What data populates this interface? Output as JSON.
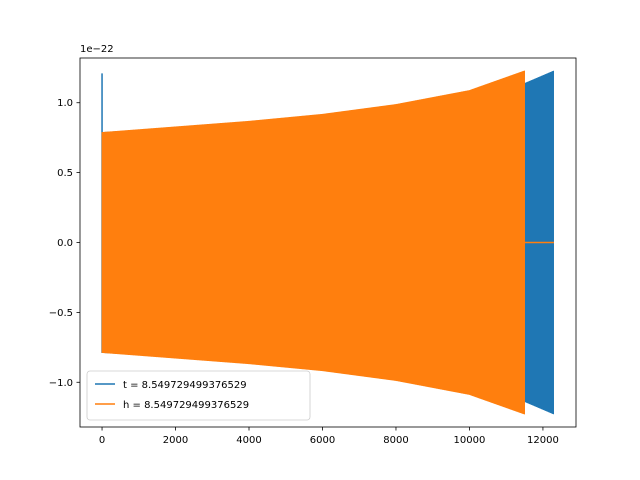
{
  "chart_data": {
    "type": "line",
    "title": "",
    "xlabel": "",
    "ylabel": "",
    "y_offset_label": "1e−22",
    "xlim": [
      -600,
      12900
    ],
    "ylim": [
      -1.32,
      1.32
    ],
    "x_ticks": [
      0,
      2000,
      4000,
      6000,
      8000,
      10000,
      12000
    ],
    "x_tick_labels": [
      "0",
      "2000",
      "4000",
      "6000",
      "8000",
      "10000",
      "12000"
    ],
    "y_ticks": [
      -1.0,
      -0.5,
      0.0,
      0.5,
      1.0
    ],
    "y_tick_labels": [
      "−1.0",
      "−0.5",
      "0.0",
      "0.5",
      "1.0"
    ],
    "grid": false,
    "legend_position": "lower-left",
    "series": [
      {
        "name": "t = 8.549729499376529",
        "color": "#1f77b4",
        "envelope": {
          "x": [
            0,
            2000,
            4000,
            6000,
            8000,
            10000,
            11500,
            12300
          ],
          "upper": [
            0.79,
            0.82,
            0.86,
            0.9,
            0.96,
            1.04,
            1.14,
            1.23
          ],
          "lower": [
            -0.79,
            -0.82,
            -0.86,
            -0.9,
            -0.96,
            -1.04,
            -1.14,
            -1.23
          ]
        },
        "spike": {
          "x": 0,
          "top": 1.21,
          "bottom": -0.79
        }
      },
      {
        "name": "h = 8.549729499376529",
        "color": "#ff7f0e",
        "envelope": {
          "x": [
            0,
            2000,
            4000,
            6000,
            8000,
            10000,
            11500
          ],
          "upper": [
            0.79,
            0.83,
            0.87,
            0.92,
            0.99,
            1.09,
            1.23
          ],
          "lower": [
            -0.79,
            -0.83,
            -0.87,
            -0.92,
            -0.99,
            -1.09,
            -1.23
          ]
        },
        "tail": {
          "x": [
            11500,
            12300
          ],
          "y": [
            0.0,
            0.0
          ]
        }
      }
    ]
  }
}
